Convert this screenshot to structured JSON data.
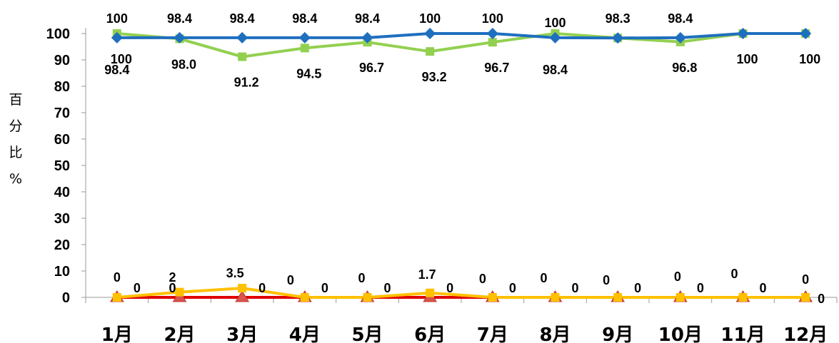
{
  "chart_data": {
    "type": "line",
    "title": "",
    "xlabel": "",
    "ylabel": "百分比%",
    "ylim": [
      0,
      100
    ],
    "yticks": [
      "0",
      "10",
      "20",
      "30",
      "40",
      "50",
      "60",
      "70",
      "80",
      "90",
      "100"
    ],
    "categories": [
      "1月",
      "2月",
      "3月",
      "4月",
      "5月",
      "6月",
      "7月",
      "8月",
      "9月",
      "10月",
      "11月",
      "12月"
    ],
    "grid": false,
    "series": [
      {
        "color": "#1f6fbf",
        "marker": "diamond",
        "values": [
          98.4,
          98.4,
          98.4,
          98.4,
          98.4,
          100,
          100,
          98.4,
          98.3,
          98.4,
          100,
          100
        ],
        "labels": [
          "",
          "98.4",
          "98.4",
          "98.4",
          "98.4",
          "100",
          "100",
          "",
          "98.3",
          "98.4",
          "",
          ""
        ]
      },
      {
        "color": "#92d050",
        "marker": "square",
        "values": [
          100,
          98.0,
          91.2,
          94.5,
          96.7,
          93.2,
          96.7,
          100,
          98.3,
          96.8,
          100,
          100
        ],
        "labels": [
          "100",
          "98.0",
          "91.2",
          "94.5",
          "96.7",
          "93.2",
          "96.7",
          "100",
          "",
          "96.8",
          "100",
          "100"
        ]
      },
      {
        "color": "#ffc000",
        "marker": "square",
        "values": [
          0,
          2,
          3.5,
          0,
          0,
          1.7,
          0,
          0,
          0,
          0,
          0,
          0
        ],
        "labels": [
          "0",
          "2",
          "3.5",
          "0",
          "0",
          "1.7",
          "0",
          "0",
          "0",
          "0",
          "0",
          "0"
        ]
      },
      {
        "color": "#e00000",
        "marker": "triangle",
        "values": [
          0,
          0,
          0,
          0,
          0,
          0,
          0,
          0,
          0,
          0,
          0,
          0
        ],
        "labels": [
          "0",
          "0",
          "0",
          "0",
          "0",
          "0",
          "0",
          "0",
          "0",
          "0",
          "0",
          "0"
        ]
      }
    ],
    "extra_labels": [
      "100",
      "98.4",
      "98.4"
    ]
  }
}
